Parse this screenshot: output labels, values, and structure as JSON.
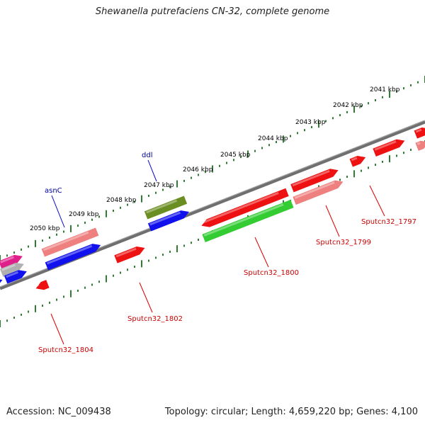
{
  "header": {
    "title": "Shewanella putrefaciens CN-32, complete genome"
  },
  "footer": {
    "accession": "Accession: NC_009438",
    "topology": "Topology: circular; Length: 4,659,220 bp; Genes: 4,100"
  },
  "colors": {
    "backbone": "#7a7a7a",
    "tick": "#2e7d32",
    "red": "#ee1111",
    "salmon": "#ee8080",
    "blue": "#1111ee",
    "green": "#33cc33",
    "olive": "#6b8e23",
    "magenta": "#e0208a",
    "grey": "#b0b0b0",
    "label_red": "#cc0000",
    "label_blue": "#000099"
  },
  "map": {
    "tick_labels": [
      "2041 kbp",
      "2042 kbp",
      "2043 kbp",
      "2044 kbp",
      "2045 kbp",
      "2046 kbp",
      "2047 kbp",
      "2048 kbp",
      "2049 kbp",
      "2050 kbp"
    ],
    "gene_labels": [
      {
        "text": "ddl",
        "color": "blue"
      },
      {
        "text": "asnC",
        "color": "blue"
      },
      {
        "text": "Sputcn32_1797",
        "color": "red"
      },
      {
        "text": "Sputcn32_1799",
        "color": "red"
      },
      {
        "text": "Sputcn32_1800",
        "color": "red"
      },
      {
        "text": "Sputcn32_1802",
        "color": "red"
      },
      {
        "text": "Sputcn32_1804",
        "color": "red"
      }
    ]
  }
}
